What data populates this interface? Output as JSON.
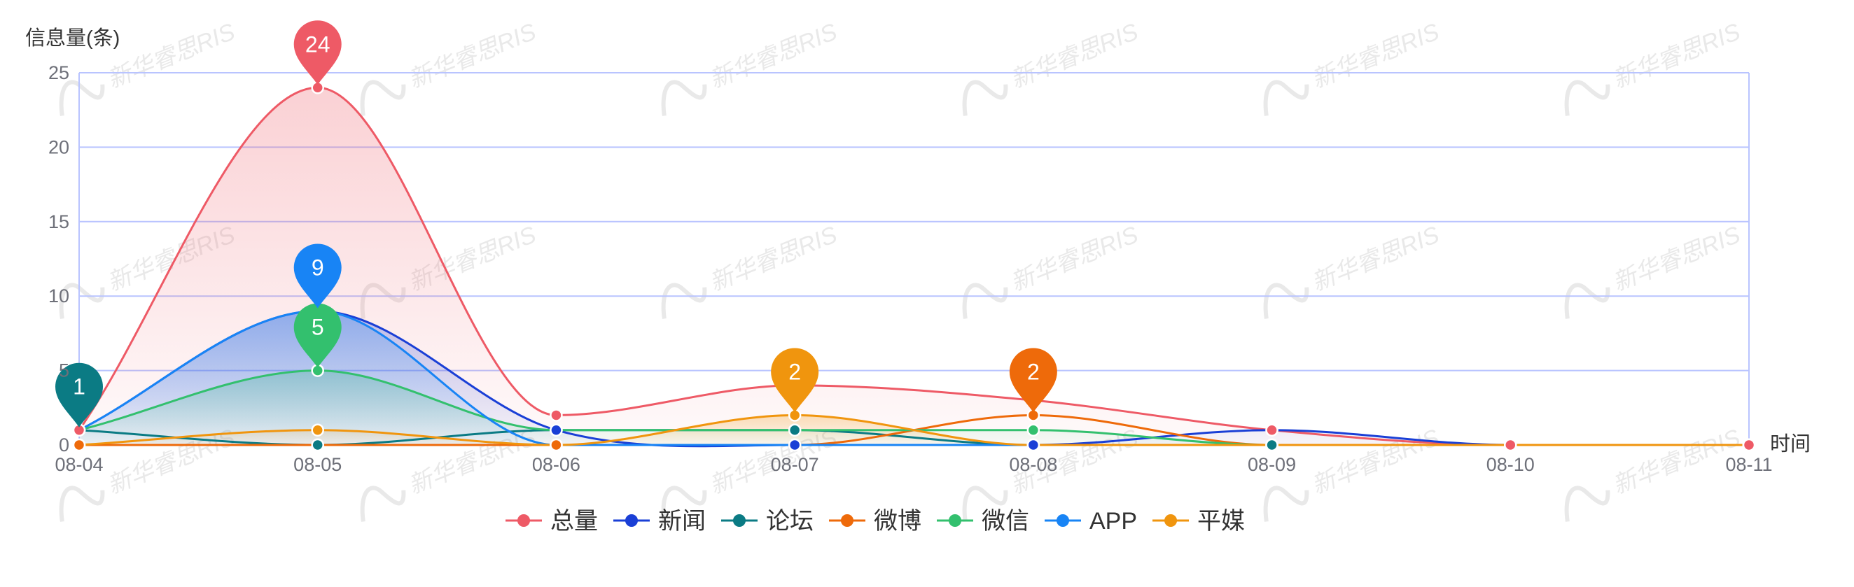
{
  "chart_data": {
    "type": "line",
    "smooth": true,
    "ylabel": "信息量(条)",
    "xlabel": "时间",
    "categories": [
      "08-04",
      "08-05",
      "08-06",
      "08-07",
      "08-08",
      "08-09",
      "08-10",
      "08-11"
    ],
    "yticks": [
      "0",
      "5",
      "10",
      "15",
      "20",
      "25"
    ],
    "ylim": [
      0,
      25
    ],
    "grid": true,
    "legend_position": "bottom",
    "series": [
      {
        "name": "总量",
        "color": "#ee5a66",
        "area": true,
        "values": [
          1,
          24,
          2,
          4,
          3,
          1,
          0,
          0
        ],
        "max_label": "24",
        "max_index": 1
      },
      {
        "name": "新闻",
        "color": "#1a3fd6",
        "area": true,
        "values": [
          1,
          9,
          1,
          0,
          0,
          1,
          0,
          0
        ],
        "max_label": "",
        "max_index": 1
      },
      {
        "name": "论坛",
        "color": "#0b7b84",
        "area": false,
        "values": [
          1,
          0,
          1,
          1,
          0,
          0,
          0,
          0
        ],
        "max_label": "1",
        "max_index": 0
      },
      {
        "name": "微博",
        "color": "#ee6a0a",
        "area": false,
        "values": [
          0,
          0,
          0,
          0,
          2,
          0,
          0,
          0
        ],
        "max_label": "2",
        "max_index": 4
      },
      {
        "name": "微信",
        "color": "#33c06e",
        "area": true,
        "values": [
          1,
          5,
          1,
          1,
          1,
          0,
          0,
          0
        ],
        "max_label": "5",
        "max_index": 1
      },
      {
        "name": "APP",
        "color": "#1884f5",
        "area": true,
        "values": [
          1,
          9,
          0,
          0,
          0,
          0,
          0,
          0
        ],
        "max_label": "9",
        "max_index": 1
      },
      {
        "name": "平媒",
        "color": "#f0950e",
        "area": true,
        "values": [
          0,
          1,
          0,
          2,
          0,
          0,
          0,
          0
        ],
        "max_label": "2",
        "max_index": 3
      }
    ]
  },
  "watermark": {
    "text": "新华睿思RIS",
    "color": "#e9e9e9"
  }
}
